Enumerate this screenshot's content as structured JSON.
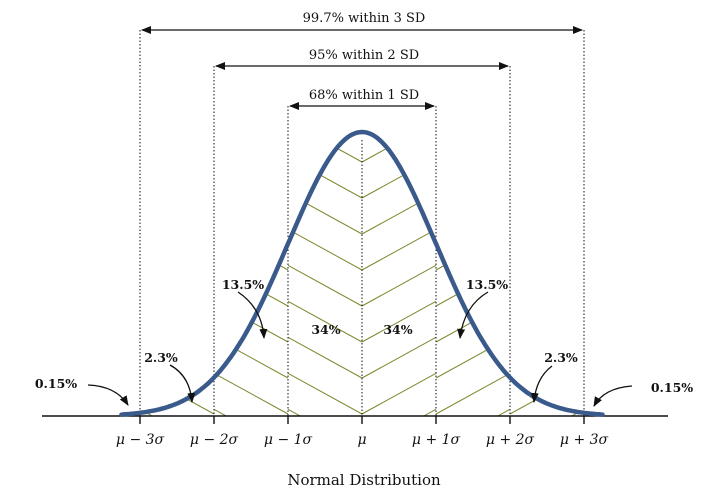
{
  "colors": {
    "curve": "#3a5a8c",
    "hatch": "#7b8a2e",
    "ink": "#111111"
  },
  "ranges": [
    {
      "label": "99.7% within 3 SD",
      "k": 3
    },
    {
      "label": "95% within 2 SD",
      "k": 2
    },
    {
      "label": "68% within 1 SD",
      "k": 1
    }
  ],
  "regions": {
    "center_left": "34%",
    "center_right": "34%",
    "mid_left": "13.5%",
    "mid_right": "13.5%",
    "outer_left": "2.3%",
    "outer_right": "2.3%",
    "tail_left": "0.15%",
    "tail_right": "0.15%"
  },
  "ticks": [
    "μ − 3σ",
    "μ − 2σ",
    "μ − 1σ",
    "μ",
    "μ + 1σ",
    "μ + 2σ",
    "μ + 3σ"
  ],
  "caption": "Normal Distribution"
}
